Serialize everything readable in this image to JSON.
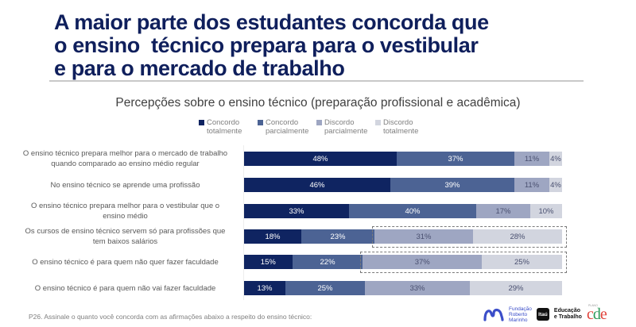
{
  "header": {
    "title_lines": [
      "A maior parte dos estudantes concorda que",
      "o ensino  técnico prepara para o vestibular",
      "e para o mercado de trabalho"
    ]
  },
  "chart_data": {
    "type": "bar",
    "orientation": "horizontal",
    "stacked": true,
    "title": "Percepções sobre o ensino técnico (preparação profissional e acadêmica)",
    "legend_position": "top",
    "unit": "%",
    "categories": [
      "O ensino técnico prepara melhor para o mercado de trabalho quando comparado ao ensino médio regular",
      "No ensino técnico se aprende uma profissão",
      "O ensino técnico prepara melhor para o vestibular que o ensino médio",
      "Os cursos de ensino técnico servem só para profissões que tem baixos salários",
      "O ensino técnico é para quem não quer fazer faculdade",
      "O ensino técnico é para quem não vai fazer faculdade"
    ],
    "series": [
      {
        "name": "Concordo totalmente",
        "color": "#0f2461",
        "text_color": "#ffffff",
        "values": [
          48,
          46,
          33,
          18,
          15,
          13
        ]
      },
      {
        "name": "Concordo parcialmente",
        "color": "#4c6394",
        "text_color": "#ffffff",
        "values": [
          37,
          39,
          40,
          23,
          22,
          25
        ]
      },
      {
        "name": "Discordo parcialmente",
        "color": "#9ea6c2",
        "text_color": "#4a5070",
        "values": [
          11,
          11,
          17,
          31,
          37,
          33
        ]
      },
      {
        "name": "Discordo totalmente",
        "color": "#d2d5df",
        "text_color": "#4a5070",
        "values": [
          4,
          4,
          10,
          28,
          25,
          29
        ]
      }
    ],
    "labels": [
      [
        "48%",
        "37%",
        "11%",
        "4%"
      ],
      [
        "46%",
        "39%",
        "11%",
        "4%"
      ],
      [
        "33%",
        "40%",
        "17%",
        "10%"
      ],
      [
        "18%",
        "23%",
        "31%",
        "28%"
      ],
      [
        "15%",
        "22%",
        "37%",
        "25%"
      ],
      [
        "13%",
        "25%",
        "33%",
        "29%"
      ]
    ],
    "highlighted_rows": [
      3,
      4
    ],
    "highlighted_series": [
      "Discordo parcialmente",
      "Discordo totalmente"
    ]
  },
  "legend": [
    {
      "line1": "Concordo",
      "line2": "totalmente",
      "color": "#0f2461"
    },
    {
      "line1": "Concordo",
      "line2": "parcialmente",
      "color": "#4c6394"
    },
    {
      "line1": "Discordo",
      "line2": "parcialmente",
      "color": "#9ea6c2"
    },
    {
      "line1": "Discordo",
      "line2": "totalmente",
      "color": "#d2d5df"
    }
  ],
  "row_labels": [
    [
      "O ensino técnico prepara melhor para o mercado de trabalho",
      "quando comparado ao ensino médio regular"
    ],
    [
      "No ensino técnico se aprende uma profissão"
    ],
    [
      "O ensino técnico prepara melhor para o vestibular que o",
      "ensino médio"
    ],
    [
      "Os cursos de ensino técnico servem só para profissões que",
      "tem baixos salários"
    ],
    [
      "O ensino técnico é para quem não quer fazer faculdade"
    ],
    [
      "O ensino técnico é para quem não vai fazer faculdade"
    ]
  ],
  "footer": {
    "note": "P26. Assinale o quanto você concorda com as afirmações abaixo a respeito do ensino técnico:",
    "logos": {
      "frm_lines": [
        "Fundação",
        "Roberto",
        "Marinho"
      ],
      "itau": "Itaú",
      "edu_lines": [
        "Educação",
        "e Trabalho"
      ],
      "plano": "PLANO",
      "cde": "cde"
    }
  }
}
